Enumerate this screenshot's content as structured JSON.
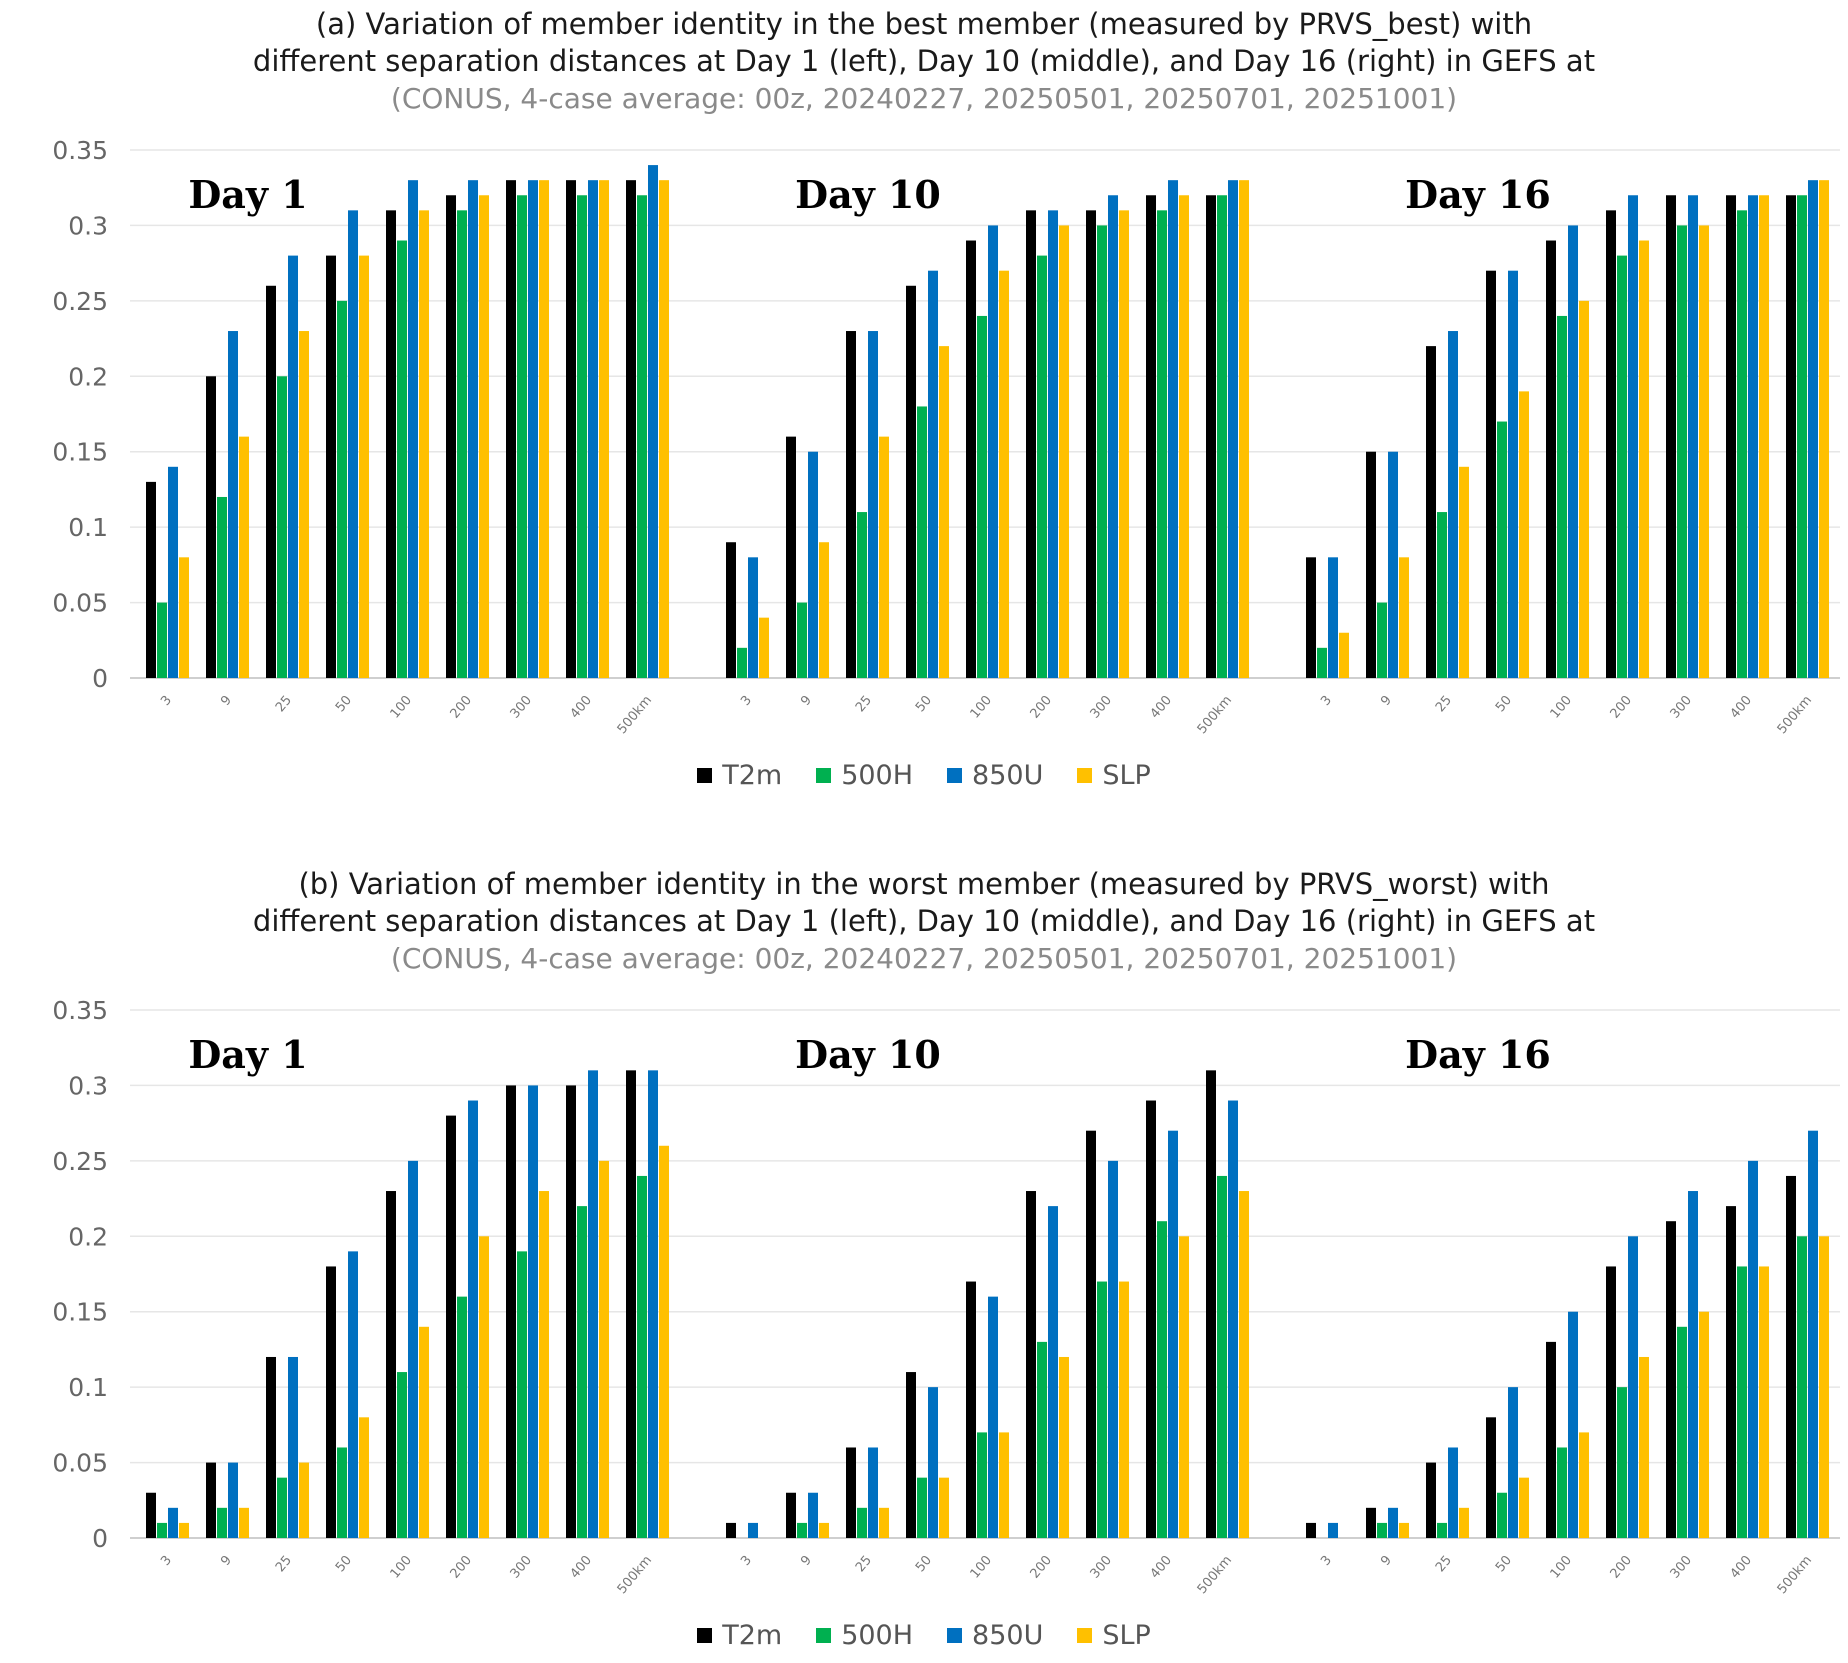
{
  "colors": {
    "T2m": "#000000",
    "500H": "#00b050",
    "850U": "#0070c0",
    "SLP": "#ffc000",
    "grid": "#e6e6e6"
  },
  "legend": [
    {
      "name": "T2m",
      "color": "#000000"
    },
    {
      "name": "500H",
      "color": "#00b050"
    },
    {
      "name": "850U",
      "color": "#0070c0"
    },
    {
      "name": "SLP",
      "color": "#ffc000"
    }
  ],
  "panels": {
    "a": {
      "title_line1": "(a) Variation of member identity in the best member (measured by PRVS_best) with",
      "title_line2": "different separation distances at Day 1 (left), Day 10 (middle), and Day 16 (right) in GEFS at",
      "title_line3": "(CONUS, 4-case average: 00z, 20240227, 20250501, 20250701, 20251001)"
    },
    "b": {
      "title_line1": "(b) Variation of member identity in the worst member (measured by PRVS_worst) with",
      "title_line2": "different separation distances at Day 1 (left), Day 10 (middle), and Day 16 (right) in GEFS at",
      "title_line3": "(CONUS, 4-case average: 00z, 20240227, 20250501, 20250701, 20251001)"
    }
  },
  "chart_data": [
    {
      "type": "bar",
      "panel": "a",
      "yticks": [
        "0",
        "0.05",
        "0.1",
        "0.15",
        "0.2",
        "0.25",
        "0.3",
        "0.35"
      ],
      "ylim": [
        0,
        0.35
      ],
      "categories": [
        "3",
        "9",
        "25",
        "50",
        "100",
        "200",
        "300",
        "400",
        "500km"
      ],
      "series_names": [
        "T2m",
        "500H",
        "850U",
        "SLP"
      ],
      "groups": [
        {
          "label": "Day 1",
          "series": [
            {
              "name": "T2m",
              "values": [
                0.13,
                0.2,
                0.26,
                0.28,
                0.31,
                0.32,
                0.33,
                0.33,
                0.33
              ]
            },
            {
              "name": "500H",
              "values": [
                0.05,
                0.12,
                0.2,
                0.25,
                0.29,
                0.31,
                0.32,
                0.32,
                0.32
              ]
            },
            {
              "name": "850U",
              "values": [
                0.14,
                0.23,
                0.28,
                0.31,
                0.33,
                0.33,
                0.33,
                0.33,
                0.34
              ]
            },
            {
              "name": "SLP",
              "values": [
                0.08,
                0.16,
                0.23,
                0.28,
                0.31,
                0.32,
                0.33,
                0.33,
                0.33
              ]
            }
          ]
        },
        {
          "label": "Day 10",
          "series": [
            {
              "name": "T2m",
              "values": [
                0.09,
                0.16,
                0.23,
                0.26,
                0.29,
                0.31,
                0.31,
                0.32,
                0.32
              ]
            },
            {
              "name": "500H",
              "values": [
                0.02,
                0.05,
                0.11,
                0.18,
                0.24,
                0.28,
                0.3,
                0.31,
                0.32
              ]
            },
            {
              "name": "850U",
              "values": [
                0.08,
                0.15,
                0.23,
                0.27,
                0.3,
                0.31,
                0.32,
                0.33,
                0.33
              ]
            },
            {
              "name": "SLP",
              "values": [
                0.04,
                0.09,
                0.16,
                0.22,
                0.27,
                0.3,
                0.31,
                0.32,
                0.33
              ]
            }
          ]
        },
        {
          "label": "Day 16",
          "series": [
            {
              "name": "T2m",
              "values": [
                0.08,
                0.15,
                0.22,
                0.27,
                0.29,
                0.31,
                0.32,
                0.32,
                0.32
              ]
            },
            {
              "name": "500H",
              "values": [
                0.02,
                0.05,
                0.11,
                0.17,
                0.24,
                0.28,
                0.3,
                0.31,
                0.32
              ]
            },
            {
              "name": "850U",
              "values": [
                0.08,
                0.15,
                0.23,
                0.27,
                0.3,
                0.32,
                0.32,
                0.32,
                0.33
              ]
            },
            {
              "name": "SLP",
              "values": [
                0.03,
                0.08,
                0.14,
                0.19,
                0.25,
                0.29,
                0.3,
                0.32,
                0.33
              ]
            }
          ]
        }
      ]
    },
    {
      "type": "bar",
      "panel": "b",
      "yticks": [
        "0",
        "0.05",
        "0.1",
        "0.15",
        "0.2",
        "0.25",
        "0.3",
        "0.35"
      ],
      "ylim": [
        0,
        0.35
      ],
      "categories": [
        "3",
        "9",
        "25",
        "50",
        "100",
        "200",
        "300",
        "400",
        "500km"
      ],
      "series_names": [
        "T2m",
        "500H",
        "850U",
        "SLP"
      ],
      "groups": [
        {
          "label": "Day 1",
          "series": [
            {
              "name": "T2m",
              "values": [
                0.03,
                0.05,
                0.12,
                0.18,
                0.23,
                0.28,
                0.3,
                0.3,
                0.31
              ]
            },
            {
              "name": "500H",
              "values": [
                0.01,
                0.02,
                0.04,
                0.06,
                0.11,
                0.16,
                0.19,
                0.22,
                0.24
              ]
            },
            {
              "name": "850U",
              "values": [
                0.02,
                0.05,
                0.12,
                0.19,
                0.25,
                0.29,
                0.3,
                0.31,
                0.31
              ]
            },
            {
              "name": "SLP",
              "values": [
                0.01,
                0.02,
                0.05,
                0.08,
                0.14,
                0.2,
                0.23,
                0.25,
                0.26
              ]
            }
          ]
        },
        {
          "label": "Day 10",
          "series": [
            {
              "name": "T2m",
              "values": [
                0.01,
                0.03,
                0.06,
                0.11,
                0.17,
                0.23,
                0.27,
                0.29,
                0.31
              ]
            },
            {
              "name": "500H",
              "values": [
                0.0,
                0.01,
                0.02,
                0.04,
                0.07,
                0.13,
                0.17,
                0.21,
                0.24
              ]
            },
            {
              "name": "850U",
              "values": [
                0.01,
                0.03,
                0.06,
                0.1,
                0.16,
                0.22,
                0.25,
                0.27,
                0.29
              ]
            },
            {
              "name": "SLP",
              "values": [
                0.0,
                0.01,
                0.02,
                0.04,
                0.07,
                0.12,
                0.17,
                0.2,
                0.23
              ]
            }
          ]
        },
        {
          "label": "Day 16",
          "series": [
            {
              "name": "T2m",
              "values": [
                0.01,
                0.02,
                0.05,
                0.08,
                0.13,
                0.18,
                0.21,
                0.22,
                0.24
              ]
            },
            {
              "name": "500H",
              "values": [
                0.0,
                0.01,
                0.01,
                0.03,
                0.06,
                0.1,
                0.14,
                0.18,
                0.2
              ]
            },
            {
              "name": "850U",
              "values": [
                0.01,
                0.02,
                0.06,
                0.1,
                0.15,
                0.2,
                0.23,
                0.25,
                0.27
              ]
            },
            {
              "name": "SLP",
              "values": [
                0.0,
                0.01,
                0.02,
                0.04,
                0.07,
                0.12,
                0.15,
                0.18,
                0.2
              ]
            }
          ]
        }
      ]
    }
  ]
}
